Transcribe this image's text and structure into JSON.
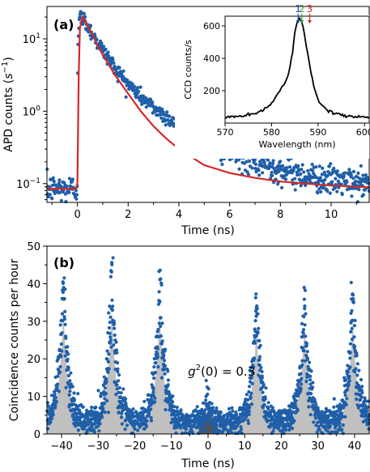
{
  "chart_data": [
    {
      "type": "scatter",
      "panel_label": "(a)",
      "xlabel": "Time (ns)",
      "ylabel_main": "APD counts (",
      "ylabel_s": "s",
      "ylabel_exp": "−1",
      "ylabel_close": ")",
      "xlim": [
        -1.2,
        11.5
      ],
      "ylim": [
        0.055,
        28
      ],
      "yscale": "log",
      "xticks": [
        0,
        2,
        4,
        6,
        8,
        10
      ],
      "xtick_labels": [
        "0",
        "2",
        "4",
        "6",
        "8",
        "10"
      ],
      "yticks": [
        0.1,
        1,
        10
      ],
      "ytick_base": "10",
      "ytick_exps": [
        "−1",
        "0",
        "1"
      ],
      "colors": {
        "data": "#1f5fa8",
        "fit": "#d62728"
      },
      "series": [
        {
          "role": "data",
          "model": {
            "background": 0.085,
            "onset": 0,
            "rise": 0.06,
            "peak_time": 0.2,
            "peak": 20,
            "decay_fast": 0.62,
            "amp_fast": 16.5,
            "decay_slow": 2.0,
            "amp_slow": 3.5,
            "noise": 0.14
          }
        },
        {
          "role": "fit",
          "x": [
            -1.2,
            -0.05,
            0,
            0.05,
            0.1,
            0.2,
            0.4,
            0.6,
            0.8,
            1.0,
            1.5,
            2.0,
            2.5,
            3.0,
            3.5,
            4.0,
            5.0,
            6.0,
            7.0,
            8.0,
            9.0,
            10.0,
            11.5
          ],
          "y": [
            0.085,
            0.085,
            0.1,
            3.0,
            14,
            20,
            15.5,
            11.2,
            8.1,
            6.0,
            3.1,
            1.75,
            1.0,
            0.62,
            0.42,
            0.3,
            0.18,
            0.14,
            0.12,
            0.107,
            0.1,
            0.094,
            0.089
          ]
        }
      ]
    },
    {
      "type": "line",
      "role": "inset",
      "xlabel": "Wavelength (nm)",
      "ylabel": "CCD counts/s",
      "xlim": [
        570,
        601
      ],
      "ylim": [
        0,
        660
      ],
      "xticks": [
        570,
        580,
        590,
        600
      ],
      "xtick_labels": [
        "570",
        "580",
        "590",
        "600"
      ],
      "yticks": [
        200,
        400,
        600
      ],
      "ytick_labels": [
        "200",
        "400",
        "600"
      ],
      "x": [
        570,
        572,
        574,
        576,
        578,
        580,
        581,
        582,
        583,
        583.5,
        584,
        584.5,
        585,
        585.5,
        586,
        586.5,
        587,
        587.5,
        588,
        588.5,
        589,
        590,
        591,
        592,
        594,
        596,
        598,
        601
      ],
      "y": [
        35,
        40,
        45,
        55,
        75,
        120,
        165,
        220,
        250,
        290,
        350,
        440,
        560,
        630,
        645,
        620,
        560,
        470,
        390,
        310,
        240,
        150,
        100,
        75,
        55,
        45,
        40,
        38
      ],
      "markers": [
        {
          "label": "1",
          "x": 585.7,
          "color": "#1f3fbf"
        },
        {
          "label": "2",
          "x": 586.5,
          "color": "#2ca02c"
        },
        {
          "label": "3",
          "x": 588.2,
          "color": "#d62728"
        }
      ]
    },
    {
      "type": "scatter",
      "panel_label": "(b)",
      "xlabel": "Time (ns)",
      "ylabel": "Coincidence counts per hour",
      "annotation_g": "g",
      "annotation_exp": "2",
      "annotation_rest": "(0) = 0.3",
      "xlim": [
        -44,
        44
      ],
      "ylim": [
        0,
        50
      ],
      "xticks": [
        -40,
        -30,
        -20,
        -10,
        0,
        10,
        20,
        30,
        40
      ],
      "xtick_labels": [
        "−40",
        "−30",
        "−20",
        "−10",
        "0",
        "10",
        "20",
        "30",
        "40"
      ],
      "yticks": [
        0,
        10,
        20,
        30,
        40,
        50
      ],
      "ytick_labels": [
        "0",
        "10",
        "20",
        "30",
        "40",
        "50"
      ],
      "colors": {
        "data": "#1f5fa8",
        "fill": "#c0c0c0",
        "center_fill": "#555555"
      },
      "peaks": [
        {
          "center": -39.5,
          "height": 40
        },
        {
          "center": -26.3,
          "height": 41
        },
        {
          "center": -13.2,
          "height": 40
        },
        {
          "center": 0,
          "height": 8
        },
        {
          "center": 13.2,
          "height": 34
        },
        {
          "center": 26.3,
          "height": 35
        },
        {
          "center": 39.5,
          "height": 37
        }
      ],
      "peak_width_ns": 1.3,
      "baseline": 3
    }
  ]
}
